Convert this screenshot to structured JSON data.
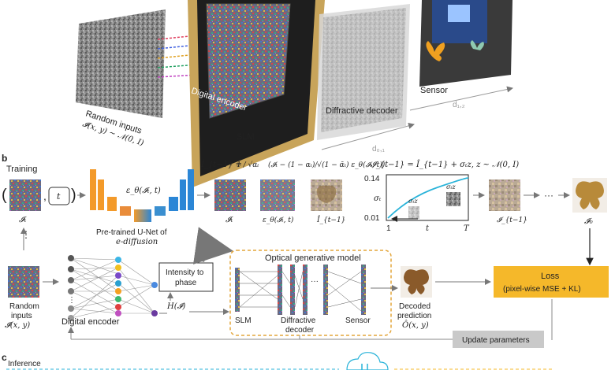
{
  "colors": {
    "slm_frame": "#c8a45a",
    "slm_body": "#1e1e1e",
    "unet_orange": "#f39a2a",
    "unet_blue": "#2b86d6",
    "loss_box": "#f5b82a",
    "update_box": "#c9c9c9",
    "optical_border": "#e3a53a",
    "curve_cyan": "#29b3d9"
  },
  "panel_a": {
    "random_inputs_label": "Random inputs",
    "random_inputs_formula": "𝓘(x, y) ~ 𝒩(0, I)",
    "digital_encoder_label": "Digital encoder",
    "slm_label": "SLM",
    "diffractive_decoder_label": "Diffractive decoder",
    "sensor_label": "Sensor",
    "d01_label": "d₀,₁",
    "d12_label": "d₁,₂"
  },
  "panel_b": {
    "letter": "b",
    "training_label": "Training",
    "t_box_label": "t",
    "it_label": "𝓘ₜ",
    "unet_eps_label": "ε_θ(𝓘ₜ, t)",
    "unet_caption_line1": "Pre-trained U-Net of",
    "unet_caption_line2": "e-diffusion",
    "eq1_lhs": "Î_{t−1} =",
    "eq1_frac": "1 / √αₜ",
    "eq1_rhs": "(𝓘ₜ − (1 − αₜ)/√(1 − ᾱₜ) ε_θ(𝓘ₜ, t))",
    "img_it_label": "𝓘ₜ",
    "img_eps_label": "ε_θ(𝓘ₜ, t)",
    "img_ihat_label": "Î_{t−1}",
    "eq2": "𝓘_{t−1} = Î_{t−1} + σₜz,  z ~ 𝒩(0, I)",
    "plot_ymax": "0.14",
    "plot_ymin": "0.01",
    "plot_ylabel": "σₜ",
    "plot_x1": "1",
    "plot_xt": "t",
    "plot_xT": "T",
    "plot_sigma_z_small": "σₜz",
    "plot_sigma_z_large": "σₜz",
    "it_minus1_label": "𝓘_{t−1}",
    "ellipsis": "···",
    "i0_label": "𝓘₀",
    "random_inputs_line1": "Random",
    "random_inputs_line2": "inputs",
    "random_inputs_line3": "𝓘(x, y)",
    "vdots": "⋮",
    "digital_encoder_label": "Digital encoder",
    "intensity_line1": "Intensity to",
    "intensity_line2": "phase",
    "h_label": "H(𝓘)",
    "optical_title": "Optical generative model",
    "slm_label": "SLM",
    "diffractive_line1": "Diffractive",
    "diffractive_line2": "decoder",
    "sensor_label": "Sensor",
    "decoded_line1": "Decoded",
    "decoded_line2": "prediction",
    "decoded_line3": "Ô(x, y)",
    "loss_line1": "Loss",
    "loss_line2": "(pixel-wise MSE + KL)",
    "update_label": "Update parameters"
  },
  "panel_c": {
    "letter": "c",
    "inference_label": "Inference"
  }
}
